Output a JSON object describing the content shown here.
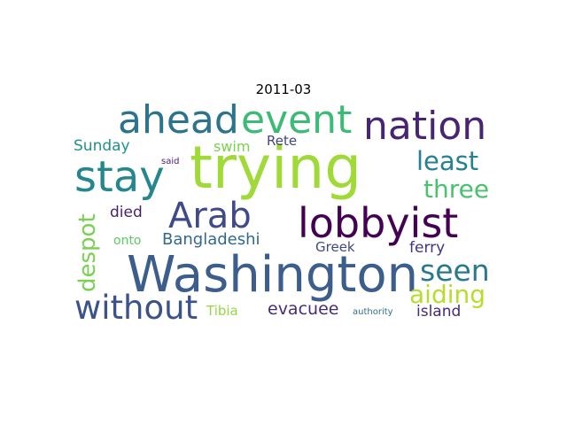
{
  "title": "2011-03",
  "words": [
    {
      "text": "trying",
      "color": "#a0da39"
    },
    {
      "text": "Washington",
      "color": "#3b5e8c"
    },
    {
      "text": "nation",
      "color": "#482475"
    },
    {
      "text": "lobbyist",
      "color": "#440154"
    },
    {
      "text": "ahead",
      "color": "#2c738e"
    },
    {
      "text": "event",
      "color": "#3bbb75"
    },
    {
      "text": "stay",
      "color": "#24868e"
    },
    {
      "text": "Arab",
      "color": "#3e4a89"
    },
    {
      "text": "without",
      "color": "#3b528b"
    },
    {
      "text": "seen",
      "color": "#2a788e"
    },
    {
      "text": "aiding",
      "color": "#b5de2b"
    },
    {
      "text": "least",
      "color": "#26828e"
    },
    {
      "text": "three",
      "color": "#4ac16d"
    },
    {
      "text": "despot",
      "color": "#7ad151"
    },
    {
      "text": "Bangladeshi",
      "color": "#31688e"
    },
    {
      "text": "evacuee",
      "color": "#472c7a"
    },
    {
      "text": "island",
      "color": "#482878"
    },
    {
      "text": "Sunday",
      "color": "#21918c"
    },
    {
      "text": "swim",
      "color": "#7ad151"
    },
    {
      "text": "Rete",
      "color": "#414487"
    },
    {
      "text": "died",
      "color": "#481f70"
    },
    {
      "text": "Greek",
      "color": "#3e4989"
    },
    {
      "text": "ferry",
      "color": "#46327e"
    },
    {
      "text": "onto",
      "color": "#5ec962"
    },
    {
      "text": "Tibia",
      "color": "#95d840"
    },
    {
      "text": "said",
      "color": "#482173"
    },
    {
      "text": "authority",
      "color": "#2c728e"
    }
  ]
}
